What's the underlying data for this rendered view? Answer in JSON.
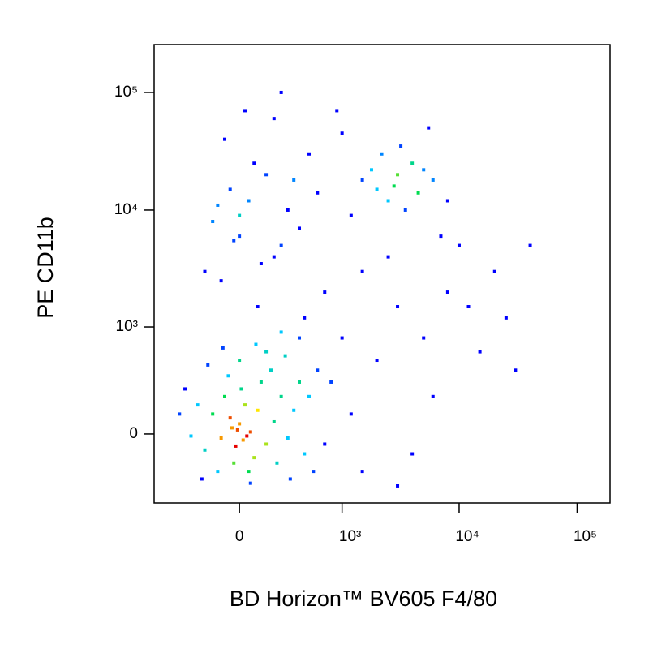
{
  "chart_data": {
    "type": "scatter",
    "scale": "biexponential",
    "x_label": "BD Horizon™ BV605 F4/80",
    "y_label": "PE CD11b",
    "color_by": "density",
    "xlim": [
      -700,
      190000
    ],
    "ylim": [
      -450,
      255000
    ],
    "xticks": [
      0,
      {
        "value": 1000,
        "label": "10³"
      },
      {
        "value": 10000,
        "label": "10⁴"
      },
      {
        "value": 100000,
        "label": "10⁵"
      }
    ],
    "yticks": [
      0,
      {
        "value": 1000,
        "label": "10³"
      },
      {
        "value": 10000,
        "label": "10⁴"
      },
      {
        "value": 100000,
        "label": "10⁵"
      }
    ],
    "x": [
      0,
      20,
      -50,
      60,
      -20,
      100,
      -100,
      30,
      -80,
      150,
      200,
      -150,
      10,
      80,
      -30,
      250,
      -200,
      120,
      -250,
      300,
      50,
      -60,
      180,
      -300,
      350,
      400,
      -120,
      220,
      -350,
      450,
      0,
      150,
      -180,
      280,
      500,
      600,
      -400,
      60,
      320,
      700,
      90,
      -90,
      400,
      250,
      -220,
      550,
      800,
      -10,
      40,
      -40,
      100,
      -100,
      200,
      0,
      -150,
      300,
      50,
      -50,
      150,
      250,
      -200,
      400,
      80,
      -80,
      200,
      500,
      0,
      120,
      -30,
      600,
      350,
      -120,
      700,
      450,
      30,
      250,
      2000,
      3000,
      2500,
      4000,
      1500,
      3500,
      5000,
      2200,
      1200,
      4500,
      2800,
      6000,
      3200,
      1800,
      8000,
      1000,
      5500,
      900,
      1500,
      3000,
      5000,
      8000,
      12000,
      20000,
      2000,
      4000,
      6000,
      1000,
      1500,
      15000,
      25000,
      10000,
      30000,
      2500,
      7000,
      1200,
      40000,
      3000
    ],
    "y": [
      50,
      -30,
      80,
      10,
      -60,
      120,
      -20,
      150,
      200,
      -50,
      60,
      100,
      250,
      -120,
      -150,
      200,
      -80,
      300,
      150,
      -20,
      -200,
      350,
      400,
      -10,
      120,
      300,
      -200,
      -150,
      250,
      -100,
      500,
      600,
      450,
      550,
      200,
      400,
      100,
      -280,
      -250,
      -50,
      700,
      650,
      800,
      900,
      -250,
      -200,
      300,
      20,
      -10,
      30,
      1500,
      2500,
      4000,
      6000,
      8000,
      10000,
      12000,
      15000,
      20000,
      5000,
      3000,
      7000,
      25000,
      40000,
      60000,
      30000,
      9000,
      3500,
      5500,
      14000,
      18000,
      11000,
      2000,
      1200,
      70000,
      100000,
      15000,
      20000,
      12000,
      25000,
      18000,
      10000,
      22000,
      30000,
      9000,
      14000,
      16000,
      18000,
      35000,
      22000,
      12000,
      45000,
      50000,
      70000,
      3000,
      1500,
      800,
      2000,
      1500,
      3000,
      500,
      -100,
      200,
      800,
      -200,
      600,
      1200,
      5000,
      400,
      4000,
      6000,
      100,
      5000,
      -300
    ]
  }
}
